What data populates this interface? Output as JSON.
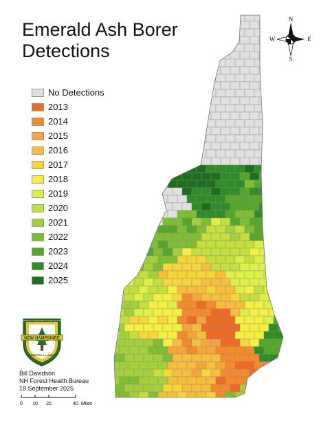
{
  "title": [
    "Emerald Ash Borer",
    "Detections"
  ],
  "compass": {
    "north": "N",
    "south": "S",
    "east": "E",
    "west": "W"
  },
  "legend": [
    {
      "label": "No Detections",
      "color": "#e0e0e0"
    },
    {
      "label": "2013",
      "color": "#ee6a25"
    },
    {
      "label": "2014",
      "color": "#f58a2a"
    },
    {
      "label": "2015",
      "color": "#f5a43a"
    },
    {
      "label": "2016",
      "color": "#f7bd3b"
    },
    {
      "label": "2017",
      "color": "#f7d63a"
    },
    {
      "label": "2018",
      "color": "#f5f03f"
    },
    {
      "label": "2019",
      "color": "#def046"
    },
    {
      "label": "2020",
      "color": "#c3e03d"
    },
    {
      "label": "2021",
      "color": "#a3cf3a"
    },
    {
      "label": "2022",
      "color": "#7fbd32"
    },
    {
      "label": "2023",
      "color": "#55a62b"
    },
    {
      "label": "2024",
      "color": "#2f8d27"
    },
    {
      "label": "2025",
      "color": "#1e6e1e"
    }
  ],
  "logo": {
    "top_text": "DEPARTMENT OF NATURAL AND CULTURAL RESOURCES",
    "banner": "NEW HAMPSHIRE",
    "bottom_text": "FORESTS & LANDS"
  },
  "credits": [
    "Bill Davidson",
    "NH Forest Health Bureau",
    "18 September 2025"
  ],
  "scale": {
    "ticks": [
      "0",
      "10",
      "20",
      "40"
    ],
    "unit": "Miles"
  }
}
